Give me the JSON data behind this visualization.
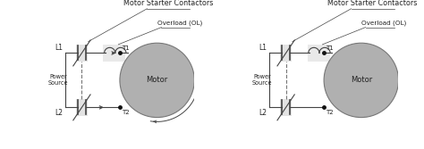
{
  "bg_color": "#ffffff",
  "line_color": "#444444",
  "motor_fill": "#b0b0b0",
  "motor_edge": "#777777",
  "dashed_color": "#777777",
  "text_color": "#222222",
  "font_size": 5.5,
  "title_font_size": 5.8,
  "ol_font_size": 5.2,
  "diagram1": {
    "title": "Motor Starter Contactors",
    "ol_label": "Overload (OL)",
    "l1_label": "L1",
    "l2_label": "L2",
    "ps_label": "Power\nSource",
    "t1_label": "T1",
    "t2_label": "T2",
    "motor_label": "Motor",
    "has_arrows": true
  },
  "diagram2": {
    "title": "Motor Starter Contactors",
    "ol_label": "Overload (OL)",
    "l1_label": "L1",
    "l2_label": "L2",
    "ps_label": "Power\nSource",
    "t1_label": "T1",
    "t2_label": "T2",
    "motor_label": "Motor",
    "has_arrows": false
  }
}
